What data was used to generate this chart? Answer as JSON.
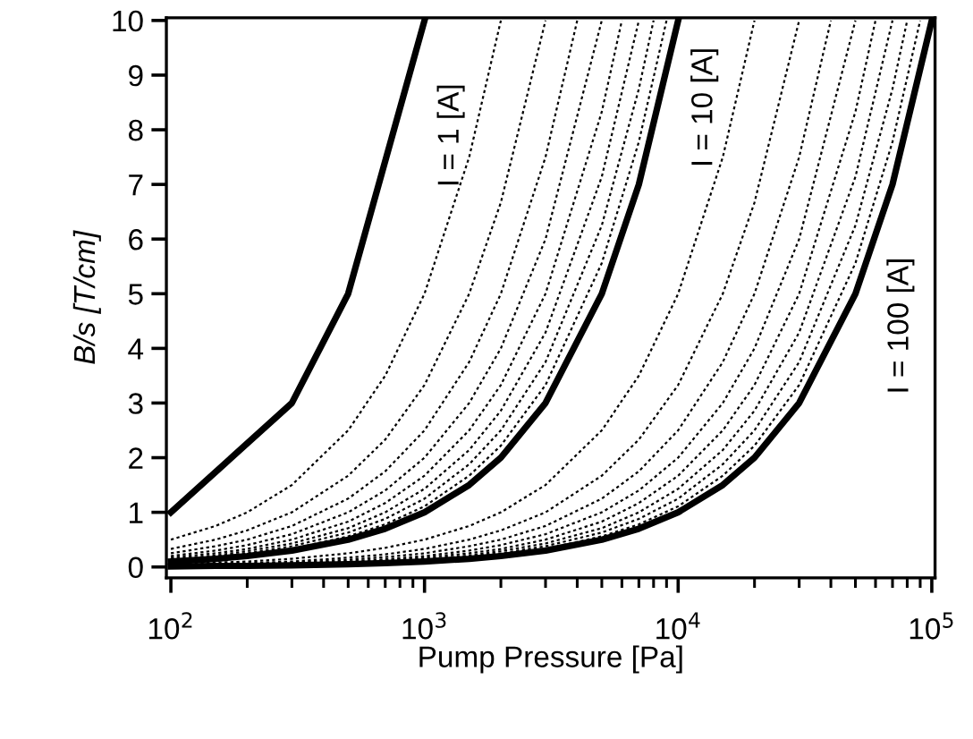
{
  "chart_data": {
    "type": "line",
    "xlabel": "Pump Pressure [Pa]",
    "ylabel": "B/s [T/cm]",
    "log": "x",
    "xlim": [
      96,
      103000
    ],
    "ylim": [
      -0.2,
      10.05
    ],
    "xticks": [
      {
        "value": 100,
        "label": "10$^{2}$"
      },
      {
        "value": 1000,
        "label": "10$^{3}$"
      },
      {
        "value": 10000,
        "label": "10$^{4}$"
      },
      {
        "value": 100000,
        "label": "10$^{5}$"
      }
    ],
    "yticks": [
      0,
      1,
      2,
      3,
      4,
      5,
      6,
      7,
      8,
      9,
      10
    ],
    "grid": false,
    "legend": false,
    "marker": "none",
    "series": [
      {
        "color": "#000000",
        "line_style": "solid",
        "x": [
          100,
          300,
          500,
          1000
        ],
        "values": [
          1,
          3,
          5,
          10
        ]
      },
      {
        "color": "#000000",
        "line_style": "dotted",
        "x": [
          100,
          150,
          200,
          300,
          500,
          700,
          1000,
          1500,
          2000
        ],
        "values": [
          0.5,
          0.75,
          1,
          1.5,
          2.5,
          3.5,
          5,
          7.5,
          10
        ]
      },
      {
        "color": "#000000",
        "line_style": "dotted",
        "x": [
          100,
          150,
          200,
          300,
          500,
          700,
          1000,
          1500,
          2000,
          3000
        ],
        "values": [
          0.33,
          0.5,
          0.67,
          1,
          1.67,
          2.33,
          3.33,
          5,
          6.67,
          10
        ]
      },
      {
        "color": "#000000",
        "line_style": "dotted",
        "x": [
          100,
          150,
          200,
          300,
          500,
          700,
          1000,
          1500,
          2000,
          3000,
          4000
        ],
        "values": [
          0.25,
          0.38,
          0.5,
          0.75,
          1.25,
          1.75,
          2.5,
          3.75,
          5,
          7.5,
          10
        ]
      },
      {
        "color": "#000000",
        "line_style": "dotted",
        "x": [
          100,
          150,
          200,
          300,
          500,
          700,
          1000,
          1500,
          2000,
          3000,
          5000
        ],
        "values": [
          0.2,
          0.3,
          0.4,
          0.6,
          1,
          1.4,
          2,
          3,
          4,
          6,
          10
        ]
      },
      {
        "color": "#000000",
        "line_style": "dotted",
        "x": [
          100,
          150,
          200,
          300,
          500,
          700,
          1000,
          1500,
          2000,
          3000,
          5000,
          6000
        ],
        "values": [
          0.17,
          0.25,
          0.33,
          0.5,
          0.83,
          1.17,
          1.67,
          2.5,
          3.33,
          5,
          8.33,
          10
        ]
      },
      {
        "color": "#000000",
        "line_style": "dotted",
        "x": [
          100,
          150,
          200,
          300,
          500,
          700,
          1000,
          1500,
          2000,
          3000,
          5000,
          7000
        ],
        "values": [
          0.14,
          0.21,
          0.29,
          0.43,
          0.71,
          1,
          1.43,
          2.14,
          2.86,
          4.29,
          7.14,
          10
        ]
      },
      {
        "color": "#000000",
        "line_style": "dotted",
        "x": [
          100,
          150,
          200,
          300,
          500,
          700,
          1000,
          1500,
          2000,
          3000,
          5000,
          7000,
          8000
        ],
        "values": [
          0.13,
          0.19,
          0.25,
          0.38,
          0.63,
          0.88,
          1.25,
          1.88,
          2.5,
          3.75,
          6.25,
          8.75,
          10
        ]
      },
      {
        "color": "#000000",
        "line_style": "dotted",
        "x": [
          100,
          150,
          200,
          300,
          500,
          700,
          1000,
          1500,
          2000,
          3000,
          5000,
          7000,
          9000
        ],
        "values": [
          0.11,
          0.17,
          0.22,
          0.33,
          0.56,
          0.78,
          1.11,
          1.67,
          2.22,
          3.33,
          5.56,
          7.78,
          10
        ]
      },
      {
        "color": "#000000",
        "line_style": "solid",
        "x": [
          100,
          150,
          200,
          300,
          500,
          700,
          1000,
          1500,
          2000,
          3000,
          5000,
          7000,
          10000
        ],
        "values": [
          0.1,
          0.15,
          0.2,
          0.3,
          0.5,
          0.7,
          1,
          1.5,
          2,
          3,
          5,
          7,
          10
        ]
      },
      {
        "color": "#000000",
        "line_style": "dotted",
        "x": [
          100,
          150,
          200,
          300,
          500,
          700,
          1000,
          1500,
          2000,
          3000,
          5000,
          7000,
          10000,
          15000,
          20000
        ],
        "values": [
          0.05,
          0.08,
          0.1,
          0.15,
          0.25,
          0.35,
          0.5,
          0.75,
          1,
          1.5,
          2.5,
          3.5,
          5,
          7.5,
          10
        ]
      },
      {
        "color": "#000000",
        "line_style": "dotted",
        "x": [
          100,
          150,
          200,
          300,
          500,
          700,
          1000,
          1500,
          2000,
          3000,
          5000,
          7000,
          10000,
          15000,
          20000,
          30000
        ],
        "values": [
          0.03,
          0.05,
          0.07,
          0.1,
          0.17,
          0.23,
          0.33,
          0.5,
          0.67,
          1,
          1.67,
          2.33,
          3.33,
          5,
          6.67,
          10
        ]
      },
      {
        "color": "#000000",
        "line_style": "dotted",
        "x": [
          100,
          150,
          200,
          300,
          500,
          700,
          1000,
          1500,
          2000,
          3000,
          5000,
          7000,
          10000,
          15000,
          20000,
          30000,
          40000
        ],
        "values": [
          0.03,
          0.04,
          0.05,
          0.08,
          0.13,
          0.18,
          0.25,
          0.38,
          0.5,
          0.75,
          1.25,
          1.75,
          2.5,
          3.75,
          5,
          7.5,
          10
        ]
      },
      {
        "color": "#000000",
        "line_style": "dotted",
        "x": [
          100,
          150,
          200,
          300,
          500,
          700,
          1000,
          1500,
          2000,
          3000,
          5000,
          7000,
          10000,
          15000,
          20000,
          30000,
          50000
        ],
        "values": [
          0.02,
          0.03,
          0.04,
          0.06,
          0.1,
          0.14,
          0.2,
          0.3,
          0.4,
          0.6,
          1,
          1.4,
          2,
          3,
          4,
          6,
          10
        ]
      },
      {
        "color": "#000000",
        "line_style": "dotted",
        "x": [
          100,
          150,
          200,
          300,
          500,
          700,
          1000,
          1500,
          2000,
          3000,
          5000,
          7000,
          10000,
          15000,
          20000,
          30000,
          50000,
          60000
        ],
        "values": [
          0.02,
          0.03,
          0.03,
          0.05,
          0.08,
          0.12,
          0.17,
          0.25,
          0.33,
          0.5,
          0.83,
          1.17,
          1.67,
          2.5,
          3.33,
          5,
          8.33,
          10
        ]
      },
      {
        "color": "#000000",
        "line_style": "dotted",
        "x": [
          100,
          150,
          200,
          300,
          500,
          700,
          1000,
          1500,
          2000,
          3000,
          5000,
          7000,
          10000,
          15000,
          20000,
          30000,
          50000,
          70000
        ],
        "values": [
          0.01,
          0.02,
          0.03,
          0.04,
          0.07,
          0.1,
          0.14,
          0.21,
          0.29,
          0.43,
          0.71,
          1,
          1.43,
          2.14,
          2.86,
          4.29,
          7.14,
          10
        ]
      },
      {
        "color": "#000000",
        "line_style": "dotted",
        "x": [
          100,
          150,
          200,
          300,
          500,
          700,
          1000,
          1500,
          2000,
          3000,
          5000,
          7000,
          10000,
          15000,
          20000,
          30000,
          50000,
          70000,
          80000
        ],
        "values": [
          0.01,
          0.02,
          0.03,
          0.04,
          0.06,
          0.09,
          0.13,
          0.19,
          0.25,
          0.38,
          0.63,
          0.88,
          1.25,
          1.88,
          2.5,
          3.75,
          6.25,
          8.75,
          10
        ]
      },
      {
        "color": "#000000",
        "line_style": "dotted",
        "x": [
          100,
          150,
          200,
          300,
          500,
          700,
          1000,
          1500,
          2000,
          3000,
          5000,
          7000,
          10000,
          15000,
          20000,
          30000,
          50000,
          70000,
          90000
        ],
        "values": [
          0.01,
          0.02,
          0.02,
          0.03,
          0.06,
          0.08,
          0.11,
          0.17,
          0.22,
          0.33,
          0.56,
          0.78,
          1.11,
          1.67,
          2.22,
          3.33,
          5.56,
          7.78,
          10
        ]
      },
      {
        "color": "#000000",
        "line_style": "solid",
        "x": [
          100,
          150,
          200,
          300,
          500,
          700,
          1000,
          1500,
          2000,
          3000,
          5000,
          7000,
          10000,
          15000,
          20000,
          30000,
          50000,
          70000,
          100000
        ],
        "values": [
          0.01,
          0.02,
          0.02,
          0.03,
          0.05,
          0.07,
          0.1,
          0.15,
          0.2,
          0.3,
          0.5,
          0.7,
          1,
          1.5,
          2,
          3,
          5,
          7,
          10
        ]
      }
    ],
    "annotations": [
      "I = 1 [A]",
      "I = 10 [A]",
      "I = 100 [A]"
    ]
  }
}
